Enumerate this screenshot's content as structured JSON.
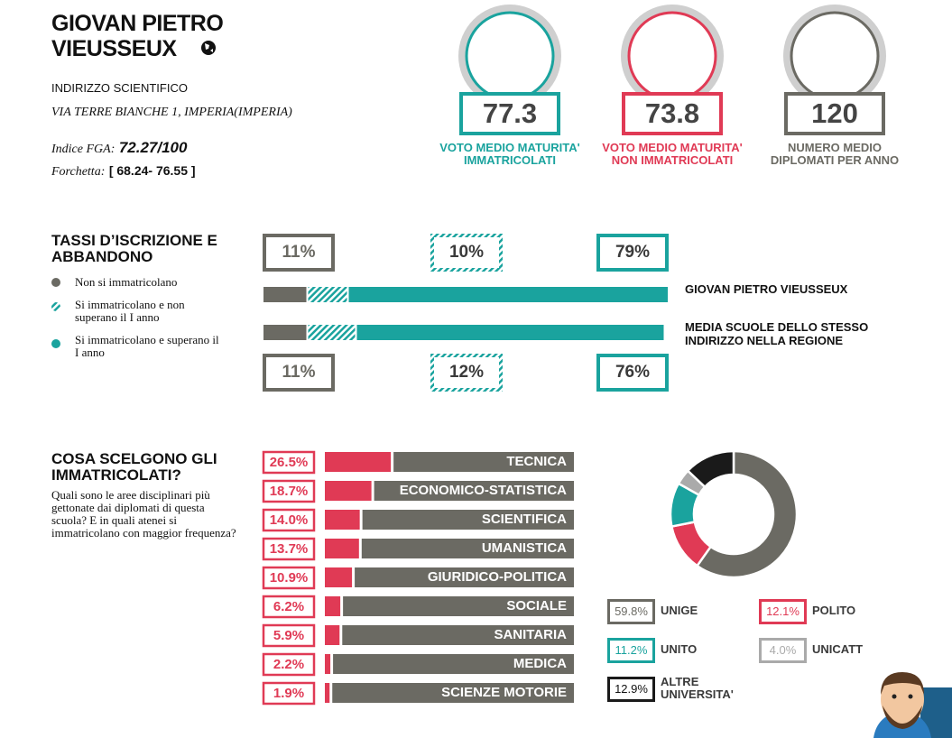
{
  "header": {
    "title": "GIOVAN PIETRO VIEUSSEUX",
    "track": "INDIRIZZO SCIENTIFICO",
    "address": "VIA TERRE BIANCHE 1, IMPERIA(IMPERIA)",
    "fga_label": "Indice FGA:",
    "fga_value": "72.27/100",
    "range_label": "Forchetta:",
    "range_value": "[ 68.24- 76.55 ]"
  },
  "stats": [
    {
      "value": 77.3,
      "label": [
        "VOTO MEDIO MATURITA'",
        "IMMATRICOLATI"
      ],
      "color": "#1aa39e"
    },
    {
      "value": 73.8,
      "label": [
        "VOTO MEDIO MATURITA'",
        "NON IMMATRICOLATI"
      ],
      "color": "#e03a55"
    },
    {
      "value": 120,
      "label": [
        "NUMERO MEDIO",
        "DIPLOMATI PER ANNO"
      ],
      "color": "#6b6a63"
    }
  ],
  "chart_data": [
    {
      "type": "stacked_bar",
      "title": "TASSI D’ISCRIZIONE E ABBANDONO",
      "categories": [
        "GIOVAN PIETRO VIEUSSEUX",
        "MEDIA SCUOLE DELLO STESSO INDIRIZZO NELLA REGIONE"
      ],
      "xlim": [
        0,
        100
      ],
      "series": [
        {
          "name": "Non si immatricolano",
          "color": "#6b6a63",
          "values": [
            11,
            11
          ],
          "value_labels": [
            "11%",
            "11%"
          ]
        },
        {
          "name": "Si immatricolano e non superano il I anno",
          "color": "#1aa39e",
          "pattern": "hatch",
          "values": [
            10,
            12
          ],
          "value_labels": [
            "10%",
            "12%"
          ]
        },
        {
          "name": "Si immatricolano e superano il I anno",
          "color": "#1aa39e",
          "values": [
            79,
            76
          ],
          "value_labels": [
            "79%",
            "76%"
          ]
        }
      ]
    },
    {
      "type": "bar",
      "title": "COSA SCELGONO GLI IMMATRICOLATI?",
      "subtitle": "Quali sono le aree disciplinari più gettonate dai diplomati di questa scuola? E in quali atenei si immatricolano con maggior frequenza?",
      "categories": [
        "TECNICA",
        "ECONOMICO-STATISTICA",
        "SCIENTIFICA",
        "UMANISTICA",
        "GIURIDICO-POLITICA",
        "SOCIALE",
        "SANITARIA",
        "MEDICA",
        "SCIENZE MOTORIE"
      ],
      "values": [
        26.5,
        18.7,
        14.0,
        13.7,
        10.9,
        6.2,
        5.9,
        2.2,
        1.9
      ],
      "value_labels": [
        "26.5%",
        "18.7%",
        "14.0%",
        "13.7%",
        "10.9%",
        "6.2%",
        "5.9%",
        "2.2%",
        "1.9%"
      ],
      "xlim": [
        0,
        100
      ],
      "color": "#e03a55",
      "track_color": "#6b6a63"
    },
    {
      "type": "donut",
      "categories": [
        "UNIGE",
        "POLITO",
        "UNITO",
        "UNICATT",
        "ALTRE UNIVERSITA'"
      ],
      "values": [
        59.8,
        12.1,
        11.2,
        4.0,
        12.9
      ],
      "value_labels": [
        "59.8%",
        "12.1%",
        "11.2%",
        "4.0%",
        "12.9%"
      ],
      "colors": [
        "#6b6a63",
        "#e03a55",
        "#1aa39e",
        "#aaaaaa",
        "#1a1a1a"
      ]
    }
  ]
}
